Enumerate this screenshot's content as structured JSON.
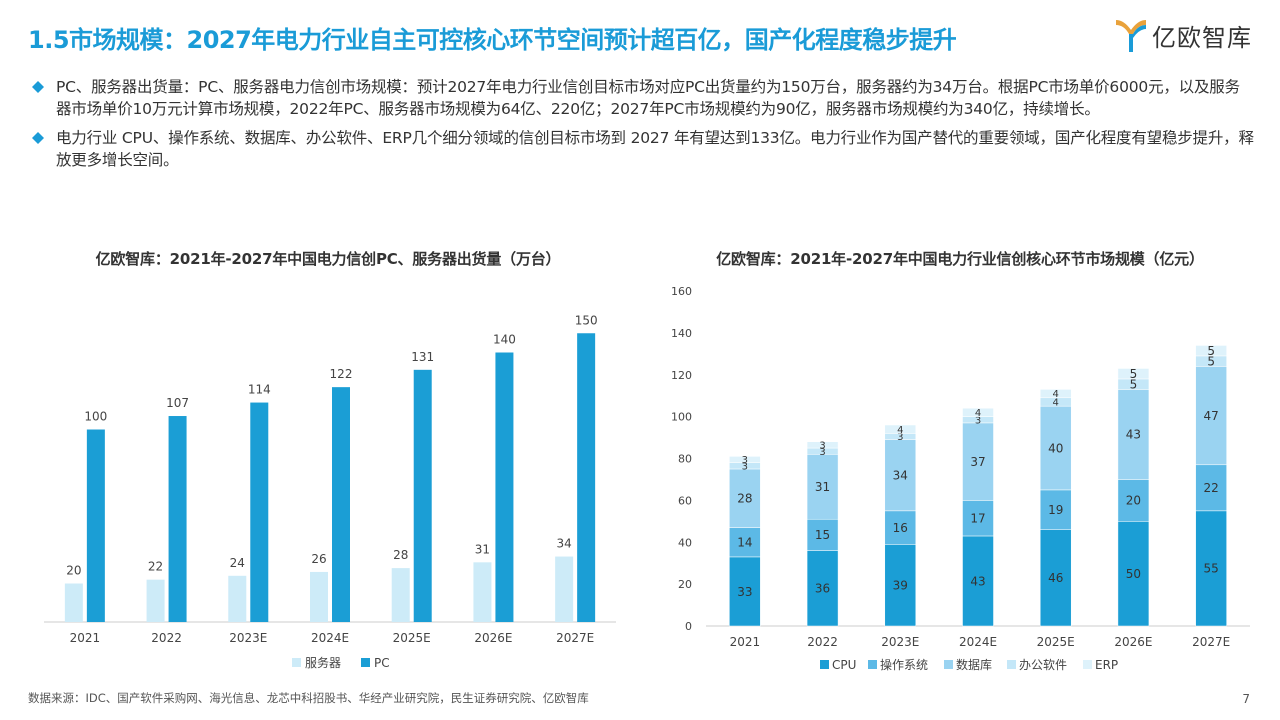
{
  "header": {
    "title": "1.5市场规模：2027年电力行业自主可控核心环节空间预计超百亿，国产化程度稳步提升",
    "logo_text": "亿欧智库",
    "logo_icon": "yiou-logo-icon"
  },
  "bullets": [
    "PC、服务器出货量：PC、服务器电力信创市场规模：预计2027年电力行业信创目标市场对应PC出货量约为150万台，服务器约为34万台。根据PC市场单价6000元，以及服务器市场单价10万元计算市场规模，2022年PC、服务器市场规模为64亿、220亿；2027年PC市场规模约为90亿，服务器市场规模约为340亿，持续增长。",
    "电力行业 CPU、操作系统、数据库、办公软件、ERP几个细分领域的信创目标市场到 2027 年有望达到133亿。电力行业作为国产替代的重要领域，国产化程度有望稳步提升，释放更多增长空间。"
  ],
  "colors": {
    "title": "#1a9bd7",
    "bullet": "#1a9bd7"
  },
  "chart_data": [
    {
      "type": "bar",
      "title": "亿欧智库：2021年-2027年中国电力信创PC、服务器出货量（万台）",
      "categories": [
        "2021",
        "2022",
        "2023E",
        "2024E",
        "2025E",
        "2026E",
        "2027E"
      ],
      "series": [
        {
          "name": "服务器",
          "values": [
            20,
            22,
            24,
            26,
            28,
            31,
            34
          ],
          "color": "#cdebf8"
        },
        {
          "name": "PC",
          "values": [
            100,
            107,
            114,
            122,
            131,
            140,
            150
          ],
          "color": "#1b9ed5"
        }
      ],
      "ylim": [
        0,
        160
      ],
      "grid": false,
      "legend": "bottom"
    },
    {
      "type": "bar",
      "stacked": true,
      "title": "亿欧智库：2021年-2027年中国电力行业信创核心环节市场规模（亿元）",
      "categories": [
        "2021",
        "2022",
        "2023E",
        "2024E",
        "2025E",
        "2026E",
        "2027E"
      ],
      "series": [
        {
          "name": "CPU",
          "values": [
            33,
            36,
            39,
            43,
            46,
            50,
            55
          ],
          "color": "#1b9ed5"
        },
        {
          "name": "操作系统",
          "values": [
            14,
            15,
            16,
            17,
            19,
            20,
            22
          ],
          "color": "#5cb9e6"
        },
        {
          "name": "数据库",
          "values": [
            28,
            31,
            34,
            37,
            40,
            43,
            47
          ],
          "color": "#9ad3f1"
        },
        {
          "name": "办公软件",
          "values": [
            3,
            3,
            3,
            3,
            4,
            5,
            5
          ],
          "color": "#c4e7f8"
        },
        {
          "name": "ERP",
          "values": [
            3,
            3,
            4,
            4,
            4,
            5,
            5
          ],
          "color": "#def2fb"
        }
      ],
      "yticks": [
        "0",
        "20",
        "40",
        "60",
        "80",
        "100",
        "120",
        "140",
        "160"
      ],
      "ylim": [
        0,
        160
      ],
      "grid": false,
      "legend": "bottom"
    }
  ],
  "footer": {
    "source": "数据来源：IDC、国产软件采购网、海光信息、龙芯中科招股书、华经产业研究院，民生证券研究院、亿欧智库",
    "page": "7"
  }
}
